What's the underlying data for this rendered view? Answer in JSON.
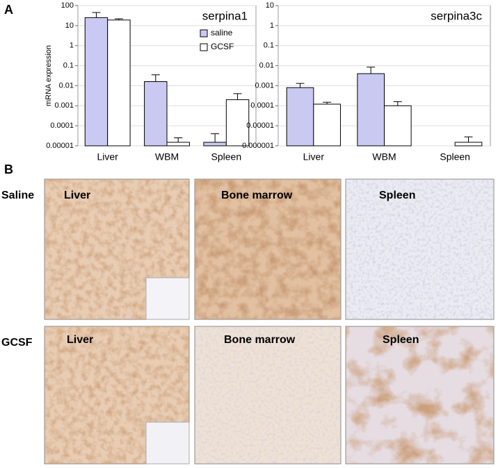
{
  "chart_data": [
    {
      "type": "bar",
      "title": "serpina1",
      "ylabel": "mRNA expression",
      "categories": [
        "Liver",
        "WBM",
        "Spleen"
      ],
      "series": [
        {
          "name": "saline",
          "color": "#c9c9f2",
          "values": [
            25,
            0.016,
            1.5e-05
          ],
          "errors": [
            20,
            0.019,
            2.5e-05
          ]
        },
        {
          "name": "GCSF",
          "color": "#ffffff",
          "values": [
            19,
            1.5e-05,
            0.002
          ],
          "errors": [
            3,
            1e-05,
            0.002
          ]
        }
      ],
      "ylim": [
        1e-05,
        100
      ],
      "yticks": [
        100,
        10,
        1,
        0.1,
        0.01,
        0.001,
        0.0001,
        1e-05
      ],
      "log_scale": true,
      "grid": true,
      "legend": "upper right"
    },
    {
      "type": "bar",
      "title": "serpina3c",
      "categories": [
        "Liver",
        "WBM",
        "Spleen"
      ],
      "series": [
        {
          "color": "#c9c9f2",
          "values": [
            0.0008,
            0.004,
            null
          ],
          "errors": [
            0.0005,
            0.0045,
            null
          ]
        },
        {
          "color": "#ffffff",
          "values": [
            0.00012,
            0.0001,
            1.5e-06
          ],
          "errors": [
            3e-05,
            6e-05,
            1.3e-06
          ]
        }
      ],
      "ylim": [
        1e-06,
        10
      ],
      "yticks": [
        10,
        1,
        0.1,
        0.01,
        0.001,
        0.0001,
        1e-05,
        1e-06
      ],
      "log_scale": true,
      "grid": true
    }
  ],
  "panel_labels": {
    "a": "A",
    "b": "B"
  },
  "rows": [
    {
      "label": "Saline",
      "images": [
        "Liver",
        "Bone marrow",
        "Spleen"
      ]
    },
    {
      "label": "GCSF",
      "images": [
        "Liver",
        "Bone marrow",
        "Spleen"
      ]
    }
  ]
}
